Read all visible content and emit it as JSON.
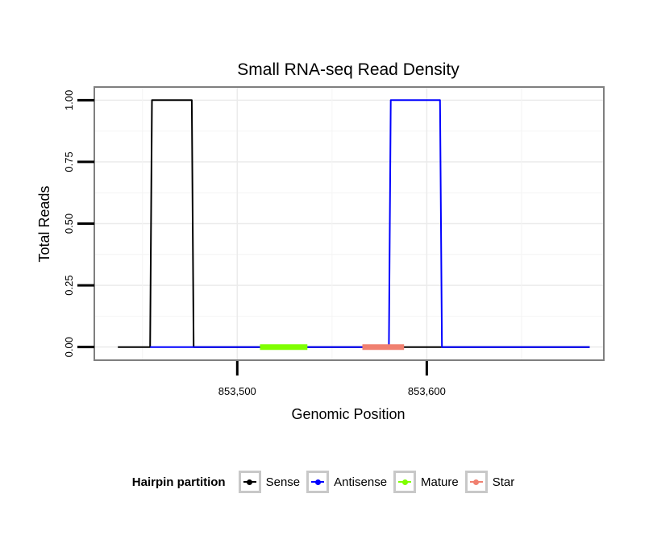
{
  "chart_data": {
    "type": "line",
    "title": "Small RNA-seq Read Density",
    "xlabel": "Genomic Position",
    "ylabel": "Total Reads",
    "xlim": [
      853425,
      853693
    ],
    "ylim": [
      -0.05,
      1.05
    ],
    "x_ticks": [
      853500,
      853600
    ],
    "x_tick_labels": [
      "853,500",
      "853,600"
    ],
    "y_ticks": [
      0,
      0.25,
      0.5,
      0.75,
      1.0
    ],
    "y_tick_labels": [
      "0.00",
      "0.25",
      "0.50",
      "0.75",
      "1.00"
    ],
    "grid": true,
    "legend_title": "Hairpin partition",
    "legend_position": "bottom",
    "series": [
      {
        "name": "Sense",
        "color": "#000000",
        "x": [
          853437,
          853454,
          853455,
          853476,
          853477,
          853686
        ],
        "y": [
          0,
          0,
          1,
          1,
          0,
          0
        ]
      },
      {
        "name": "Antisense",
        "color": "#0000ff",
        "x": [
          853454,
          853477,
          853580,
          853581,
          853607,
          853608,
          853686
        ],
        "y": [
          0,
          0,
          0,
          1,
          1,
          0,
          0
        ]
      },
      {
        "name": "Mature",
        "color": "#7fff00",
        "x": [
          853512,
          853537
        ],
        "y": [
          0,
          0
        ],
        "thick": true
      },
      {
        "name": "Star",
        "color": "#f08070",
        "x": [
          853566,
          853588
        ],
        "y": [
          0,
          0
        ],
        "thick": true
      }
    ]
  }
}
